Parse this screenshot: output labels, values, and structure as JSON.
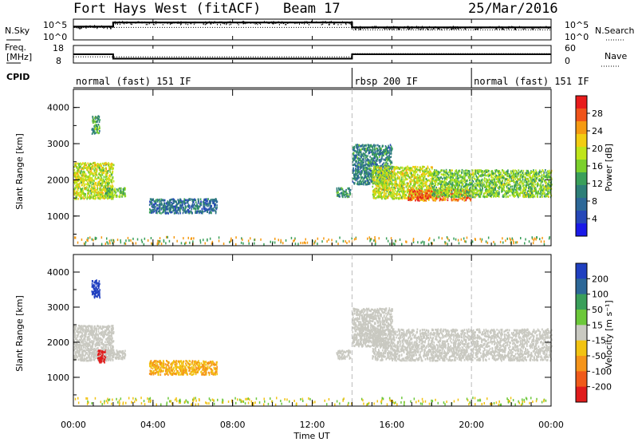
{
  "header": {
    "site": "Fort Hays West (fitACF)",
    "beam": "Beam 17",
    "date": "25/Mar/2016"
  },
  "noise_panel": {
    "left_label": "N.Sky",
    "right_label": "N.Search",
    "left_ticks": [
      "10^5",
      "10^0"
    ],
    "right_ticks": [
      "10^5",
      "10^0"
    ]
  },
  "freq_panel": {
    "left_label_1": "Freq.",
    "left_label_2": "[MHz]",
    "right_label": "Nave",
    "left_ticks": [
      "18",
      "8"
    ],
    "right_ticks": [
      "60",
      "0"
    ]
  },
  "cpid": {
    "label": "CPID",
    "segments": [
      {
        "name": "normal (fast) 151 IF",
        "start_h": 0,
        "end_h": 14
      },
      {
        "name": "rbsp 200 IF",
        "start_h": 14,
        "end_h": 20
      },
      {
        "name": "normal (fast) 151 IF",
        "start_h": 20,
        "end_h": 24
      }
    ]
  },
  "x_axis": {
    "label": "Time UT",
    "ticks": [
      "00:00",
      "04:00",
      "08:00",
      "12:00",
      "16:00",
      "20:00",
      "00:00"
    ]
  },
  "power_colorbar": {
    "label": "Power [dB]",
    "ticks": [
      "28",
      "24",
      "20",
      "16",
      "12",
      "8",
      "4"
    ],
    "colors": [
      "#e81c1c",
      "#f0541a",
      "#f59a12",
      "#f2cd12",
      "#bfe51a",
      "#7bd02c",
      "#3a9f5a",
      "#2e7f78",
      "#2d6898",
      "#2648b8",
      "#1a1ae8"
    ]
  },
  "velocity_colorbar": {
    "label": "Velocity [m s⁻¹]",
    "ticks": [
      "200",
      "100",
      "50",
      "15",
      "-15",
      "-50",
      "-100",
      "-200"
    ],
    "colors": [
      "#2040c0",
      "#2d6898",
      "#3a9f5a",
      "#6cc83a",
      "#c9c9c1",
      "#f2c312",
      "#f5941a",
      "#f05a1a",
      "#e01c1c"
    ]
  },
  "chart_data": [
    {
      "type": "line",
      "title": "N.Sky / N.Search",
      "series": [
        {
          "name": "N.Sky",
          "x": [
            0,
            2,
            2,
            14,
            14,
            24
          ],
          "y": [
            3.2,
            3.2,
            4.2,
            4.2,
            3.0,
            3.0
          ]
        },
        {
          "name": "N.Search",
          "x": [
            0,
            14,
            14,
            24
          ],
          "y": [
            3.0,
            3.0,
            2.4,
            2.4
          ]
        }
      ],
      "xlim": [
        0,
        24
      ],
      "ylim": [
        0,
        5
      ],
      "ylabel": "N.Sky"
    },
    {
      "type": "line",
      "title": "Freq / Nave",
      "series": [
        {
          "name": "Freq.",
          "x": [
            0,
            2,
            2,
            14,
            14,
            24
          ],
          "y": [
            13,
            13,
            10.5,
            10.5,
            13,
            13
          ]
        },
        {
          "name": "Nave",
          "x": [
            0,
            2,
            2,
            14,
            14,
            24
          ],
          "y": [
            21,
            21,
            21,
            21,
            32,
            32
          ]
        }
      ],
      "xlim": [
        0,
        24
      ],
      "ylim": [
        8,
        18
      ]
    },
    {
      "type": "heatmap",
      "title": "Power",
      "xlabel": "Time UT",
      "ylabel": "Slant Range [km]",
      "xlim": [
        0,
        24
      ],
      "ylim": [
        180,
        4500
      ],
      "yticks": [
        1000,
        2000,
        3000,
        4000
      ],
      "regions": [
        {
          "x": [
            0,
            2
          ],
          "y": [
            1500,
            2500
          ],
          "level": 18
        },
        {
          "x": [
            0.9,
            1.3
          ],
          "y": [
            3300,
            3800
          ],
          "level": 12
        },
        {
          "x": [
            1.6,
            2.6
          ],
          "y": [
            1550,
            1800
          ],
          "level": 14
        },
        {
          "x": [
            3.8,
            7.2
          ],
          "y": [
            1100,
            1500
          ],
          "level": 7
        },
        {
          "x": [
            13.2,
            13.9
          ],
          "y": [
            1550,
            1800
          ],
          "level": 10
        },
        {
          "x": [
            14.0,
            16.0
          ],
          "y": [
            1900,
            3000
          ],
          "level": 9
        },
        {
          "x": [
            15.0,
            18.0
          ],
          "y": [
            1500,
            2400
          ],
          "level": 18
        },
        {
          "x": [
            16.8,
            20.0
          ],
          "y": [
            1450,
            1750
          ],
          "level": 26
        },
        {
          "x": [
            18.0,
            24.0
          ],
          "y": [
            1550,
            2300
          ],
          "level": 15
        }
      ]
    },
    {
      "type": "heatmap",
      "title": "Velocity",
      "xlabel": "Time UT",
      "ylabel": "Slant Range [km]",
      "xlim": [
        0,
        24
      ],
      "ylim": [
        180,
        4500
      ],
      "yticks": [
        1000,
        2000,
        3000,
        4000
      ],
      "regions": [
        {
          "x": [
            0,
            2
          ],
          "y": [
            1500,
            2500
          ],
          "level": 0
        },
        {
          "x": [
            0.9,
            1.3
          ],
          "y": [
            3300,
            3800
          ],
          "level": 200
        },
        {
          "x": [
            1.2,
            1.6
          ],
          "y": [
            1450,
            1800
          ],
          "level": -200
        },
        {
          "x": [
            1.6,
            2.6
          ],
          "y": [
            1550,
            1800
          ],
          "level": 0
        },
        {
          "x": [
            3.8,
            7.2
          ],
          "y": [
            1100,
            1500
          ],
          "level": -50
        },
        {
          "x": [
            13.2,
            13.9
          ],
          "y": [
            1550,
            1800
          ],
          "level": 0
        },
        {
          "x": [
            14.0,
            16.0
          ],
          "y": [
            1900,
            3000
          ],
          "level": 0
        },
        {
          "x": [
            15.0,
            24.0
          ],
          "y": [
            1500,
            2400
          ],
          "level": 0
        }
      ]
    }
  ]
}
